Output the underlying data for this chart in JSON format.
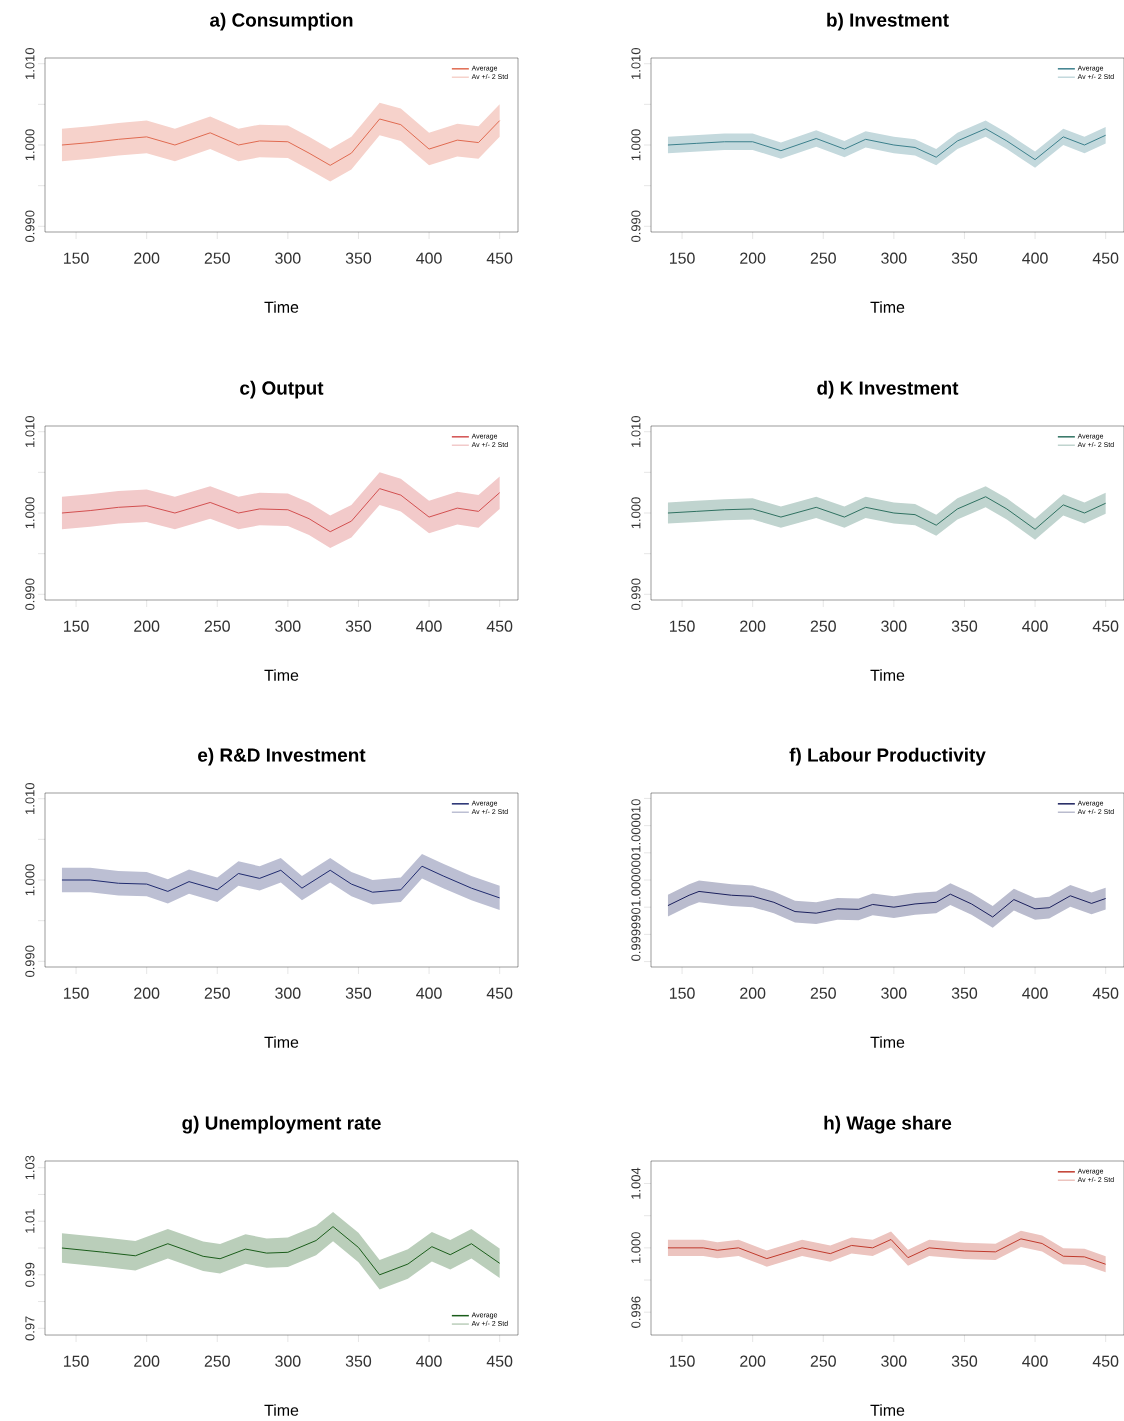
{
  "chart_data": [
    {
      "type": "line",
      "title": "a) Consumption",
      "xlabel": "Time",
      "xlim": [
        128,
        463
      ],
      "xticks": [
        150,
        200,
        250,
        300,
        350,
        400,
        450
      ],
      "ylim": [
        0.9893,
        1.0107
      ],
      "yticks": [
        {
          "value": 0.99,
          "label": "0.990"
        },
        {
          "value": 0.995,
          "label": null
        },
        {
          "value": 1.0,
          "label": "1.000"
        },
        {
          "value": 1.005,
          "label": null
        },
        {
          "value": 1.01,
          "label": "1.010"
        }
      ],
      "legend": "top right",
      "annotations": [
        "Av +/- 2 Std"
      ],
      "x": [
        140,
        160,
        180,
        200,
        220,
        245,
        265,
        280,
        300,
        315,
        330,
        345,
        365,
        380,
        400,
        420,
        435,
        450
      ],
      "series": [
        {
          "name": "Average",
          "color": "#e06a50",
          "values": [
            1.0,
            1.0003,
            1.0007,
            1.001,
            1.0,
            1.0015,
            1.0,
            1.0005,
            1.0004,
            0.999,
            0.9975,
            0.999,
            1.0032,
            1.0025,
            0.9995,
            1.0006,
            1.0003,
            1.003
          ],
          "lower": [
            0.998,
            0.9983,
            0.9987,
            0.999,
            0.998,
            0.9995,
            0.998,
            0.9985,
            0.9984,
            0.997,
            0.9955,
            0.997,
            1.0012,
            1.0005,
            0.9975,
            0.9986,
            0.9983,
            1.001
          ],
          "upper": [
            1.002,
            1.0023,
            1.0027,
            1.003,
            1.002,
            1.0035,
            1.002,
            1.0025,
            1.0024,
            1.001,
            0.9995,
            1.001,
            1.0052,
            1.0045,
            1.0015,
            1.0026,
            1.0023,
            1.005
          ]
        }
      ]
    },
    {
      "type": "line",
      "title": "b) Investment",
      "xlabel": "Time",
      "xlim": [
        128,
        463
      ],
      "xticks": [
        150,
        200,
        250,
        300,
        350,
        400,
        450
      ],
      "ylim": [
        0.9893,
        1.0107
      ],
      "yticks": [
        {
          "value": 0.99,
          "label": "0.990"
        },
        {
          "value": 0.995,
          "label": null
        },
        {
          "value": 1.0,
          "label": "1.000"
        },
        {
          "value": 1.005,
          "label": null
        },
        {
          "value": 1.01,
          "label": "1.010"
        }
      ],
      "legend": "top right",
      "annotations": [
        "Av +/- 2 Std"
      ],
      "x": [
        140,
        160,
        180,
        200,
        220,
        245,
        265,
        280,
        300,
        315,
        330,
        345,
        365,
        380,
        400,
        420,
        435,
        450
      ],
      "series": [
        {
          "name": "Average",
          "color": "#3b7f8c",
          "values": [
            1.0,
            1.0002,
            1.0004,
            1.0004,
            0.9993,
            1.0008,
            0.9995,
            1.0007,
            1.0,
            0.9997,
            0.9985,
            1.0005,
            1.002,
            1.0005,
            0.9982,
            1.001,
            1.0,
            1.0012
          ],
          "lower": [
            0.999,
            0.9992,
            0.9994,
            0.9994,
            0.9983,
            0.9998,
            0.9985,
            0.9997,
            0.999,
            0.9987,
            0.9975,
            0.9995,
            1.001,
            0.9995,
            0.9972,
            1.0,
            0.999,
            1.0002
          ],
          "upper": [
            1.001,
            1.0012,
            1.0014,
            1.0014,
            1.0003,
            1.0018,
            1.0005,
            1.0017,
            1.001,
            1.0007,
            0.9995,
            1.0015,
            1.003,
            1.0015,
            0.9992,
            1.002,
            1.001,
            1.0022
          ]
        }
      ]
    },
    {
      "type": "line",
      "title": "c) Output",
      "xlabel": "Time",
      "xlim": [
        128,
        463
      ],
      "xticks": [
        150,
        200,
        250,
        300,
        350,
        400,
        450
      ],
      "ylim": [
        0.9893,
        1.0107
      ],
      "yticks": [
        {
          "value": 0.99,
          "label": "0.990"
        },
        {
          "value": 0.995,
          "label": null
        },
        {
          "value": 1.0,
          "label": "1.000"
        },
        {
          "value": 1.005,
          "label": null
        },
        {
          "value": 1.01,
          "label": "1.010"
        }
      ],
      "legend": "top right",
      "annotations": [
        "Av +/- 2 Std"
      ],
      "x": [
        140,
        160,
        180,
        200,
        220,
        245,
        265,
        280,
        300,
        315,
        330,
        345,
        365,
        380,
        400,
        420,
        435,
        450
      ],
      "series": [
        {
          "name": "Average",
          "color": "#d24f4f",
          "values": [
            1.0,
            1.0003,
            1.0007,
            1.0009,
            1.0,
            1.0013,
            1.0,
            1.0005,
            1.0004,
            0.9993,
            0.9977,
            0.999,
            1.003,
            1.0022,
            0.9995,
            1.0006,
            1.0002,
            1.0025
          ],
          "lower": [
            0.998,
            0.9983,
            0.9987,
            0.9989,
            0.998,
            0.9993,
            0.998,
            0.9985,
            0.9984,
            0.9973,
            0.9957,
            0.997,
            1.001,
            1.0002,
            0.9975,
            0.9986,
            0.9982,
            1.0005
          ],
          "upper": [
            1.002,
            1.0023,
            1.0027,
            1.0029,
            1.002,
            1.0033,
            1.002,
            1.0025,
            1.0024,
            1.0013,
            0.9997,
            1.001,
            1.005,
            1.0042,
            1.0015,
            1.0026,
            1.0022,
            1.0045
          ]
        }
      ]
    },
    {
      "type": "line",
      "title": "d) K Investment",
      "xlabel": "Time",
      "xlim": [
        128,
        463
      ],
      "xticks": [
        150,
        200,
        250,
        300,
        350,
        400,
        450
      ],
      "ylim": [
        0.9893,
        1.0107
      ],
      "yticks": [
        {
          "value": 0.99,
          "label": "0.990"
        },
        {
          "value": 0.995,
          "label": null
        },
        {
          "value": 1.0,
          "label": "1.000"
        },
        {
          "value": 1.005,
          "label": null
        },
        {
          "value": 1.01,
          "label": "1.010"
        }
      ],
      "legend": "top right",
      "annotations": [
        "Av +/- 2 Std"
      ],
      "x": [
        140,
        160,
        180,
        200,
        220,
        245,
        265,
        280,
        300,
        315,
        330,
        345,
        365,
        380,
        400,
        420,
        435,
        450
      ],
      "series": [
        {
          "name": "Average",
          "color": "#2e7060",
          "values": [
            1.0,
            1.0002,
            1.0004,
            1.0005,
            0.9995,
            1.0007,
            0.9995,
            1.0007,
            1.0,
            0.9998,
            0.9985,
            1.0005,
            1.002,
            1.0005,
            0.998,
            1.001,
            1.0,
            1.0012
          ],
          "lower": [
            0.9987,
            0.9989,
            0.9991,
            0.9992,
            0.9982,
            0.9994,
            0.9982,
            0.9994,
            0.9987,
            0.9985,
            0.9972,
            0.9992,
            1.0007,
            0.9992,
            0.9967,
            0.9997,
            0.9987,
            0.9999
          ],
          "upper": [
            1.0013,
            1.0015,
            1.0017,
            1.0018,
            1.0008,
            1.002,
            1.0008,
            1.002,
            1.0013,
            1.0011,
            0.9998,
            1.0018,
            1.0033,
            1.0018,
            0.9993,
            1.0023,
            1.0013,
            1.0025
          ]
        }
      ]
    },
    {
      "type": "line",
      "title": "e) R&D Investment",
      "xlabel": "Time",
      "xlim": [
        128,
        463
      ],
      "xticks": [
        150,
        200,
        250,
        300,
        350,
        400,
        450
      ],
      "ylim": [
        0.9893,
        1.0107
      ],
      "yticks": [
        {
          "value": 0.99,
          "label": "0.990"
        },
        {
          "value": 0.995,
          "label": null
        },
        {
          "value": 1.0,
          "label": "1.000"
        },
        {
          "value": 1.005,
          "label": null
        },
        {
          "value": 1.01,
          "label": "1.010"
        }
      ],
      "legend": "top right",
      "annotations": [
        "Av +/- 2 Std"
      ],
      "x": [
        140,
        160,
        180,
        200,
        215,
        230,
        250,
        265,
        280,
        295,
        310,
        330,
        345,
        360,
        380,
        395,
        410,
        430,
        450
      ],
      "series": [
        {
          "name": "Average",
          "color": "#1f2a6e",
          "values": [
            1.0,
            1.0,
            0.9996,
            0.9995,
            0.9986,
            0.9998,
            0.9988,
            1.0008,
            1.0002,
            1.0012,
            0.999,
            1.0012,
            0.9995,
            0.9985,
            0.9988,
            1.0017,
            1.0005,
            0.999,
            0.9978
          ],
          "lower": [
            0.9985,
            0.9985,
            0.9981,
            0.998,
            0.9971,
            0.9983,
            0.9973,
            0.9993,
            0.9987,
            0.9997,
            0.9975,
            0.9997,
            0.998,
            0.997,
            0.9973,
            1.0002,
            0.999,
            0.9975,
            0.9963
          ],
          "upper": [
            1.0015,
            1.0015,
            1.0011,
            1.001,
            1.0001,
            1.0013,
            1.0003,
            1.0023,
            1.0017,
            1.0027,
            1.0005,
            1.0027,
            1.001,
            1.0,
            1.0003,
            1.0032,
            1.002,
            1.0005,
            0.9993
          ]
        }
      ]
    },
    {
      "type": "line",
      "title": "f) Labour Productivity",
      "xlabel": "Time",
      "xlim": [
        128,
        463
      ],
      "xticks": [
        150,
        200,
        250,
        300,
        350,
        400,
        450
      ],
      "ylim": [
        0.999984,
        1.000016
      ],
      "yticks": [
        {
          "value": 0.999985,
          "label": null
        },
        {
          "value": 0.99999,
          "label": "0.999990"
        },
        {
          "value": 0.999995,
          "label": null
        },
        {
          "value": 1.0,
          "label": "1.000000"
        },
        {
          "value": 1.000005,
          "label": null
        },
        {
          "value": 1.00001,
          "label": "1.000010"
        },
        {
          "value": 1.000015,
          "label": null
        }
      ],
      "legend": "top right",
      "annotations": [
        "Av +/- 2 Std"
      ],
      "x": [
        140,
        155,
        162,
        185,
        200,
        215,
        230,
        245,
        260,
        275,
        285,
        300,
        315,
        330,
        340,
        355,
        370,
        385,
        400,
        410,
        425,
        440,
        450
      ],
      "series": [
        {
          "name": "Average",
          "color": "#1a1f5c",
          "values": [
            0.9999953,
            0.9999972,
            0.9999979,
            0.9999972,
            0.999997,
            0.9999959,
            0.9999942,
            0.9999939,
            0.9999947,
            0.9999946,
            0.9999955,
            0.999995,
            0.9999956,
            0.9999959,
            0.9999974,
            0.9999956,
            0.9999932,
            0.9999964,
            0.9999947,
            0.9999949,
            0.9999971,
            0.9999957,
            0.9999966
          ],
          "lower": [
            0.9999933,
            0.9999952,
            0.9999959,
            0.9999952,
            0.999995,
            0.9999939,
            0.9999922,
            0.9999919,
            0.9999927,
            0.9999926,
            0.9999935,
            0.999993,
            0.9999936,
            0.9999939,
            0.9999954,
            0.9999936,
            0.9999912,
            0.9999944,
            0.9999927,
            0.9999929,
            0.9999951,
            0.9999937,
            0.9999946
          ],
          "upper": [
            0.9999973,
            0.9999992,
            0.9999999,
            0.9999992,
            0.999999,
            0.9999979,
            0.9999962,
            0.9999959,
            0.9999967,
            0.9999966,
            0.9999975,
            0.999997,
            0.9999976,
            0.9999979,
            0.9999994,
            0.9999976,
            0.9999952,
            0.9999984,
            0.9999967,
            0.9999969,
            0.9999991,
            0.9999977,
            0.9999986
          ]
        }
      ]
    },
    {
      "type": "line",
      "title": "g) Unemployment rate",
      "xlabel": "Time",
      "xlim": [
        128,
        463
      ],
      "xticks": [
        150,
        200,
        250,
        300,
        350,
        400,
        450
      ],
      "ylim": [
        0.9675,
        1.0325
      ],
      "yticks": [
        {
          "value": 0.97,
          "label": "0.97"
        },
        {
          "value": 0.98,
          "label": null
        },
        {
          "value": 0.99,
          "label": "0.99"
        },
        {
          "value": 1.0,
          "label": null
        },
        {
          "value": 1.01,
          "label": "1.01"
        },
        {
          "value": 1.02,
          "label": null
        },
        {
          "value": 1.03,
          "label": "1.03"
        }
      ],
      "legend": "bottom right",
      "annotations": [
        "Av +/- 2 Std"
      ],
      "x": [
        140,
        170,
        192,
        215,
        240,
        252,
        270,
        285,
        300,
        320,
        332,
        350,
        365,
        385,
        402,
        415,
        430,
        450
      ],
      "series": [
        {
          "name": "Average",
          "color": "#1a5c1a",
          "values": [
            1.0,
            0.9984,
            0.9971,
            1.0016,
            0.9969,
            0.996,
            0.9996,
            0.9981,
            0.9984,
            1.0028,
            1.008,
            1.0002,
            0.99,
            0.994,
            1.0005,
            0.9975,
            1.0016,
            0.9943
          ],
          "lower": [
            0.9945,
            0.9929,
            0.9916,
            0.9961,
            0.9914,
            0.9905,
            0.9941,
            0.9926,
            0.9929,
            0.9973,
            1.0025,
            0.9947,
            0.9845,
            0.9885,
            0.995,
            0.992,
            0.9961,
            0.9888
          ],
          "upper": [
            1.0055,
            1.0039,
            1.0026,
            1.0071,
            1.0024,
            1.0015,
            1.0051,
            1.0036,
            1.0039,
            1.0083,
            1.0135,
            1.0057,
            0.9955,
            0.9995,
            1.006,
            1.003,
            1.0071,
            0.9998
          ]
        }
      ]
    },
    {
      "type": "line",
      "title": "h) Wage share",
      "xlabel": "Time",
      "xlim": [
        128,
        463
      ],
      "xticks": [
        150,
        200,
        250,
        300,
        350,
        400,
        450
      ],
      "ylim": [
        0.99458,
        1.0054
      ],
      "yticks": [
        {
          "value": 0.996,
          "label": "0.996"
        },
        {
          "value": 0.998,
          "label": null
        },
        {
          "value": 1.0,
          "label": "1.000"
        },
        {
          "value": 1.002,
          "label": null
        },
        {
          "value": 1.004,
          "label": "1.004"
        }
      ],
      "legend": "top right",
      "annotations": [
        "Av +/- 2 Std"
      ],
      "x": [
        140,
        165,
        175,
        190,
        210,
        235,
        255,
        270,
        285,
        298,
        310,
        325,
        350,
        372,
        390,
        405,
        420,
        435,
        450
      ],
      "series": [
        {
          "name": "Average",
          "color": "#c0392b",
          "values": [
            1.0,
            1.0,
            0.99985,
            1.0,
            0.99933,
            1.0,
            0.99964,
            1.00015,
            1.0,
            1.00052,
            0.99939,
            1.0,
            0.99981,
            0.99975,
            1.00056,
            1.00027,
            0.99948,
            0.99944,
            0.99898
          ],
          "lower": [
            0.9995,
            0.9995,
            0.99935,
            0.9995,
            0.99883,
            0.9995,
            0.99914,
            0.99965,
            0.9995,
            1.00002,
            0.99889,
            0.9995,
            0.99931,
            0.99925,
            1.00006,
            0.99977,
            0.99898,
            0.99894,
            0.99848
          ],
          "upper": [
            1.0005,
            1.0005,
            1.00035,
            1.0005,
            0.99983,
            1.0005,
            1.00014,
            1.00065,
            1.0005,
            1.00102,
            0.99989,
            1.0005,
            1.00031,
            1.00025,
            1.00106,
            1.00077,
            0.99998,
            0.99994,
            0.99948
          ]
        }
      ]
    }
  ]
}
